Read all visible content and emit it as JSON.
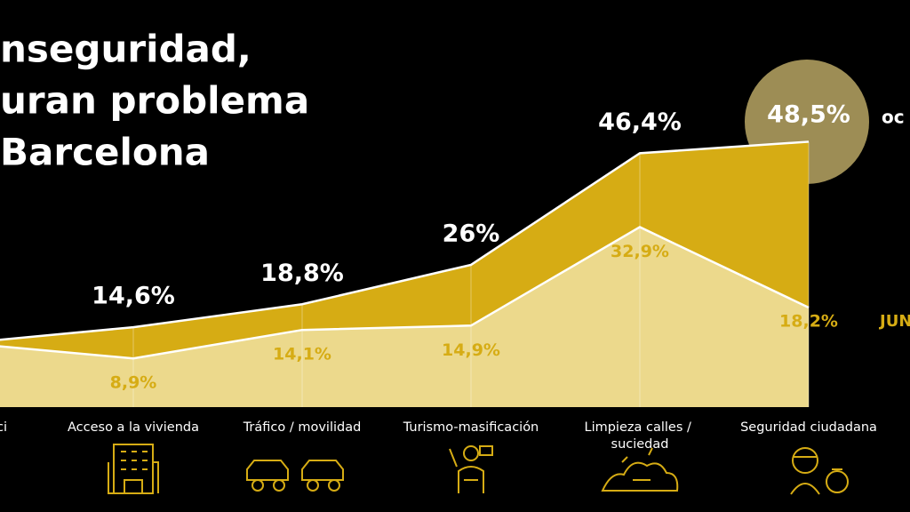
{
  "title_lines": [
    "nseguridad,",
    "uran problema",
    "Barcelona"
  ],
  "chart_data": {
    "type": "area",
    "categories": [
      "ci",
      "Acceso a la vivienda",
      "Tráfico / movilidad",
      "Turismo-masificación",
      "Limpieza calles / suciedad",
      "Seguridad ciudadana"
    ],
    "series": [
      {
        "name": "oc",
        "color": "#d6ac14",
        "values": [
          11.7,
          14.6,
          18.8,
          26,
          46.4,
          48.5
        ],
        "value_labels": [
          null,
          "14,6%",
          "18,8%",
          "26%",
          "46,4%",
          "48,5%"
        ]
      },
      {
        "name": "JUN",
        "color": "#ecd98c",
        "values": [
          11.7,
          8.9,
          14.1,
          14.9,
          32.9,
          18.2
        ],
        "value_labels": [
          null,
          "8,9%",
          "14,1%",
          "14,9%",
          "32,9%",
          "18,2%"
        ]
      }
    ],
    "ylim": [
      0,
      74.4
    ]
  }
}
